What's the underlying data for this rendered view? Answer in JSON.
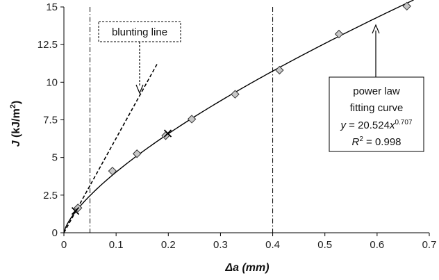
{
  "chart_data": {
    "type": "scatter",
    "xlabel": "Δa (mm)",
    "xlabel_symbol": "Δa",
    "xlabel_unit": " (mm)",
    "ylabel": "J (kJ/m²)",
    "ylabel_symbol": "J",
    "ylabel_unit": " (kJ/m",
    "ylabel_sup": "2",
    "ylabel_close": ")",
    "xlim": [
      0,
      0.7
    ],
    "ylim": [
      0,
      15
    ],
    "xticks": [
      0,
      0.1,
      0.2,
      0.3,
      0.4,
      0.5,
      0.6,
      0.7
    ],
    "xtick_labels": [
      "0",
      "0.1",
      "0.2",
      "0.3",
      "0.4",
      "0.5",
      "0.6",
      "0.7"
    ],
    "yticks": [
      0,
      2.5,
      5,
      7.5,
      10,
      12.5,
      15
    ],
    "ytick_labels": [
      "0",
      "2.5",
      "5",
      "7.5",
      "10",
      "12.5",
      "15"
    ],
    "grid": false,
    "data_points": {
      "marker": "diamond",
      "x": [
        0.027,
        0.093,
        0.14,
        0.195,
        0.245,
        0.328,
        0.413,
        0.527,
        0.657
      ],
      "y": [
        1.65,
        4.1,
        5.25,
        6.45,
        7.55,
        9.2,
        10.8,
        13.2,
        15.05
      ]
    },
    "intersection_points": {
      "marker": "x",
      "x": [
        0.022,
        0.199
      ],
      "y": [
        1.45,
        6.6
      ]
    },
    "fit_curve": {
      "a": 20.524,
      "b": 0.707,
      "x_range": [
        0,
        0.67
      ]
    },
    "blunting_line": {
      "x": [
        0,
        0.18
      ],
      "y": [
        0,
        11.3
      ]
    },
    "exclusion_lines": {
      "x": [
        0.05,
        0.4
      ]
    },
    "annotations": {
      "blunting_label": "blunting line",
      "fit_label_line1": "power law",
      "fit_label_line2": "fitting curve",
      "eq_y": "y",
      "eq_x": "x",
      "eq_coef": " = 20.524",
      "eq_exp": "0.707",
      "r2_r": "R",
      "r2_sup": "2",
      "r2_value": " = 0.998"
    },
    "colors": {
      "markers_fill": "#c8c8c8",
      "lines": "#000000"
    }
  }
}
